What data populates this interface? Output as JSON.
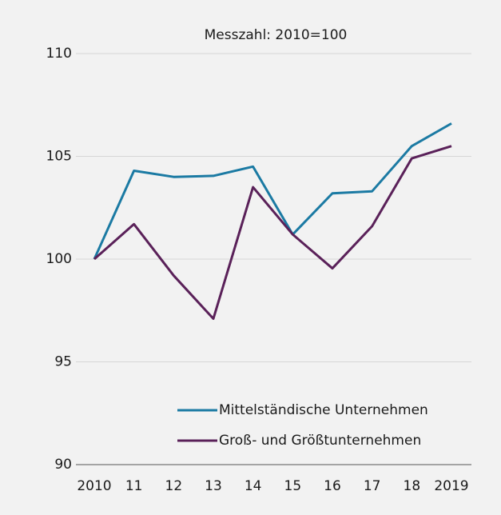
{
  "chart_data": {
    "type": "line",
    "title": "Messzahl: 2010=100",
    "categories": [
      "2010",
      "11",
      "12",
      "13",
      "14",
      "15",
      "16",
      "17",
      "18",
      "2019"
    ],
    "series": [
      {
        "name": "Mittelständische Unternehmen",
        "color": "#1b7aa3",
        "values": [
          100,
          104.3,
          104.0,
          104.05,
          104.5,
          101.2,
          103.2,
          103.3,
          105.5,
          106.6
        ]
      },
      {
        "name": "Groß- und Größtunternehmen",
        "color": "#5a2159",
        "values": [
          100,
          101.7,
          99.2,
          97.1,
          103.5,
          101.2,
          99.55,
          101.6,
          104.9,
          105.5
        ]
      }
    ],
    "ylim": [
      90,
      110
    ],
    "yticks": [
      90,
      95,
      100,
      105,
      110
    ],
    "grid": true,
    "legend": "lower right"
  }
}
